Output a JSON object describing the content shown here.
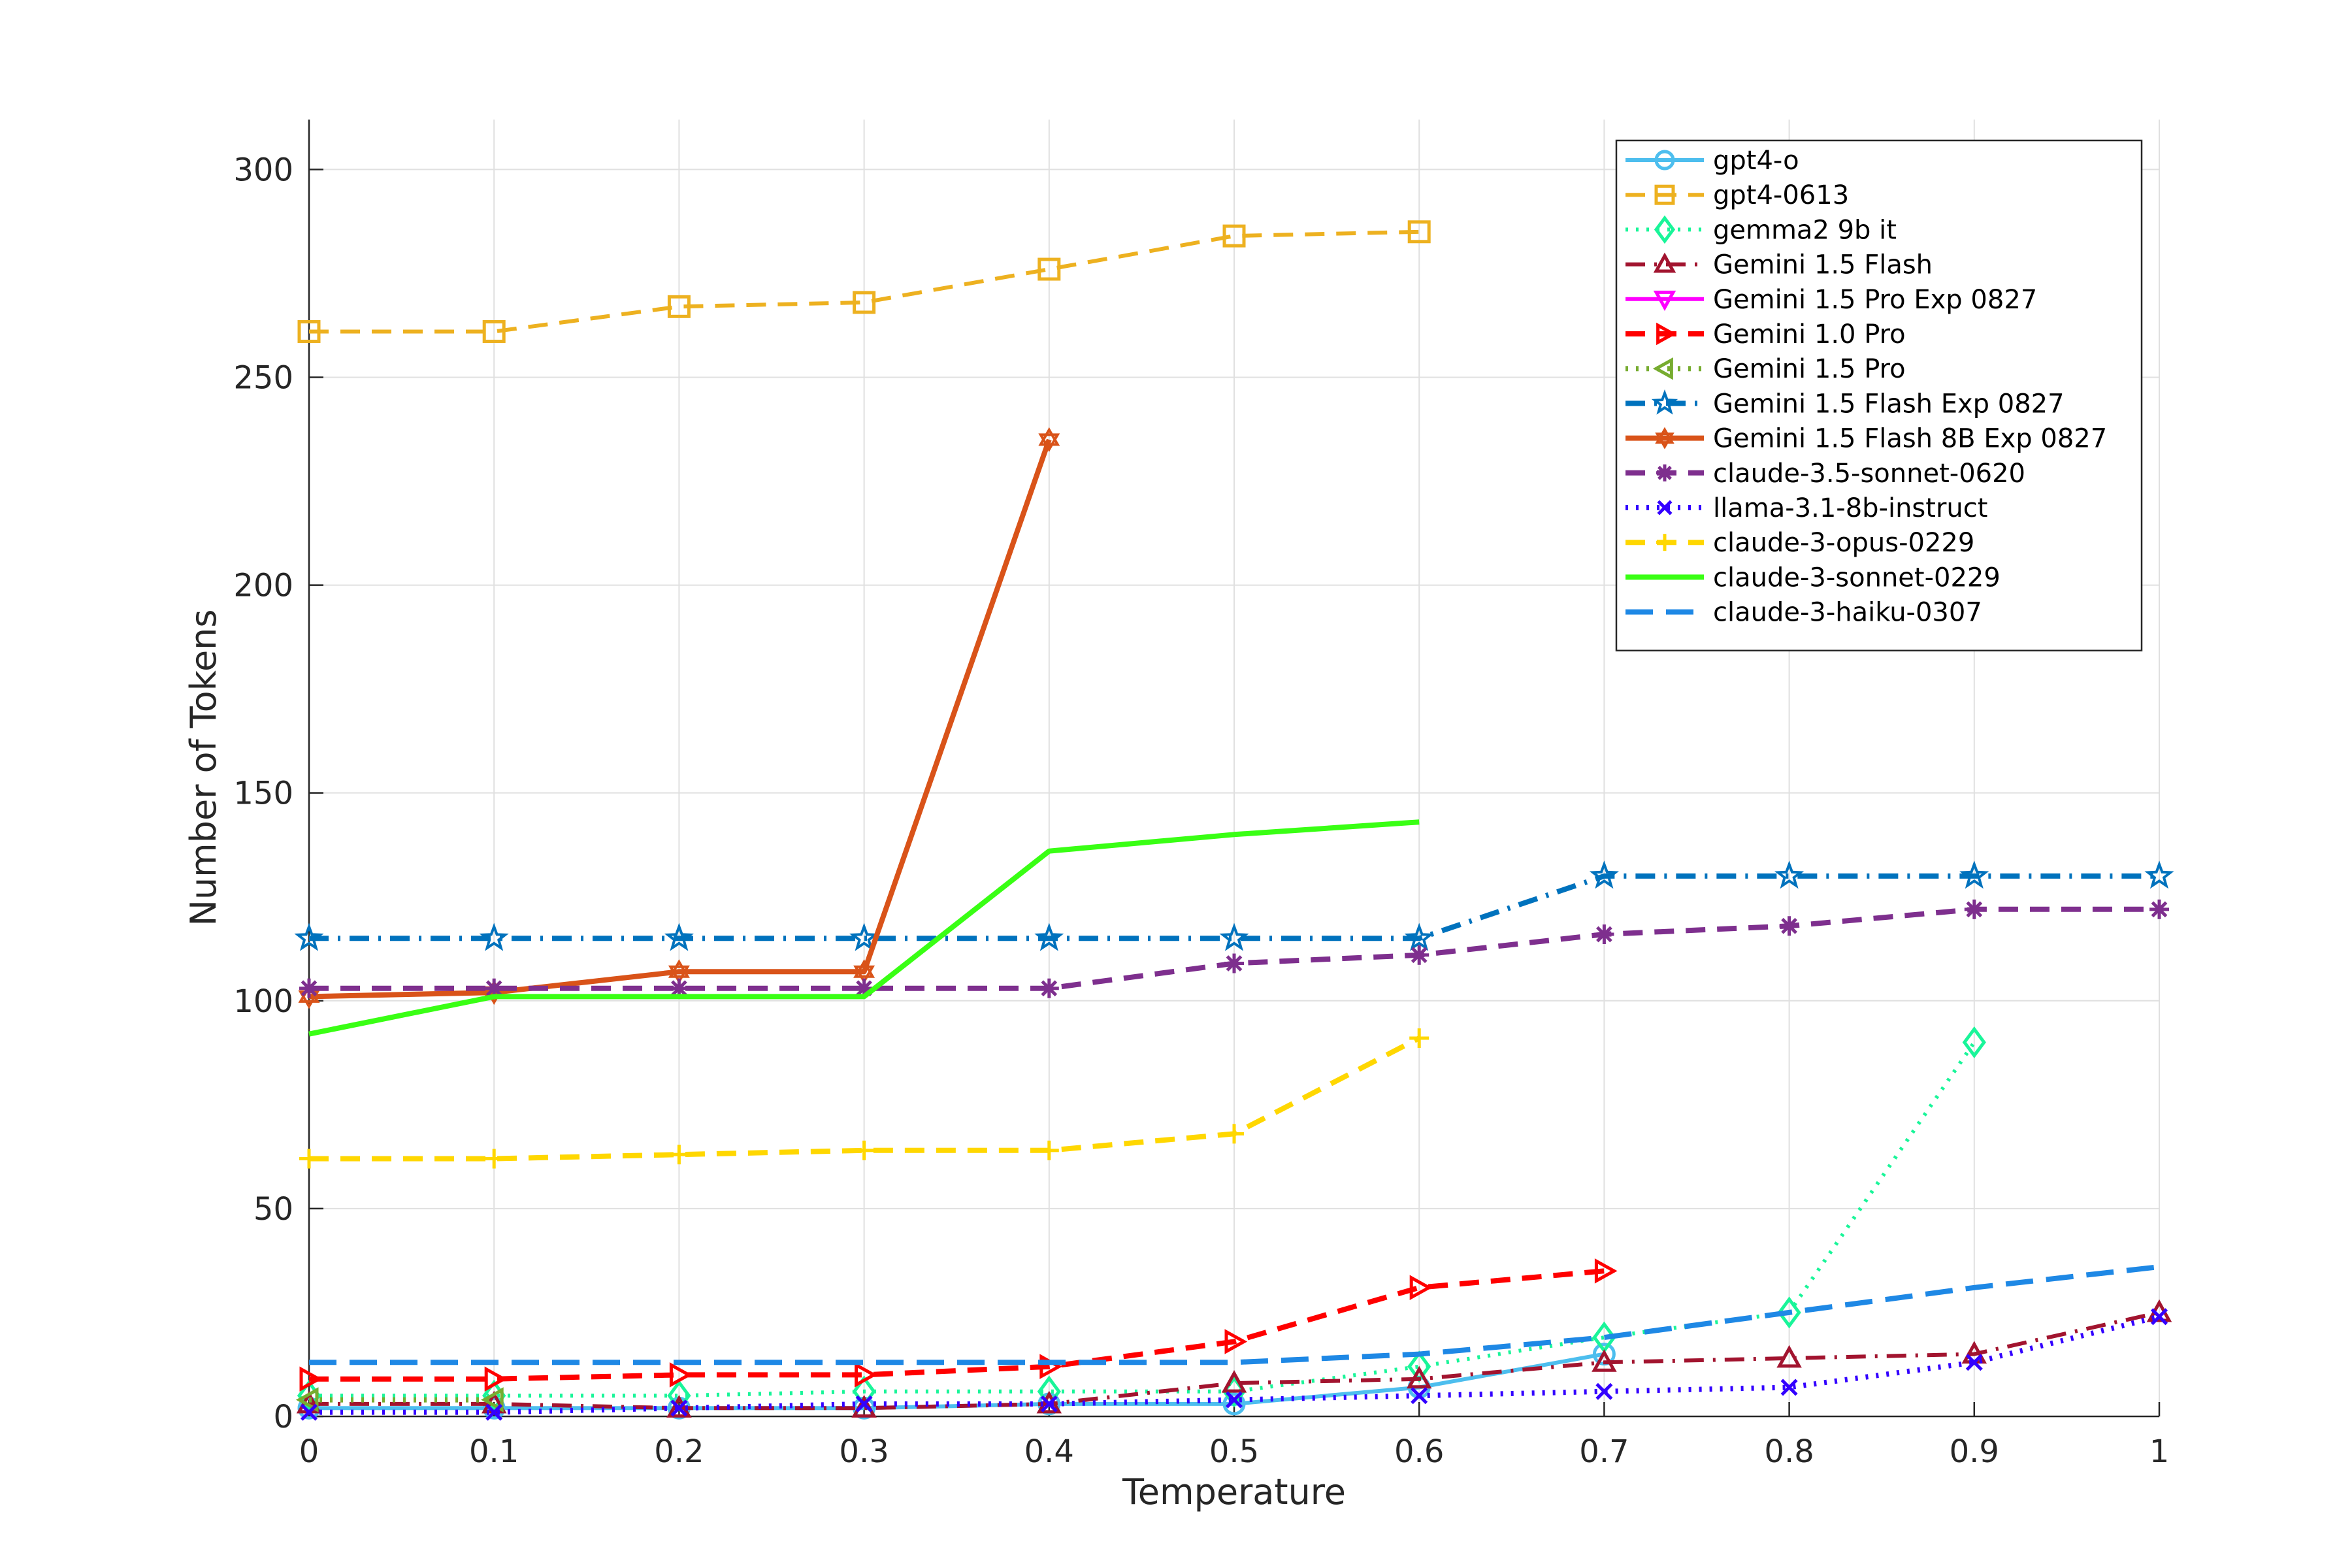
{
  "chart_data": {
    "type": "line",
    "title": "",
    "xlabel": "Temperature",
    "ylabel": "Number of Tokens",
    "xlim": [
      0,
      1
    ],
    "ylim": [
      0,
      300
    ],
    "xticks": [
      0,
      0.1,
      0.2,
      0.3,
      0.4,
      0.5,
      0.6,
      0.7,
      0.8,
      0.9,
      1
    ],
    "xtick_labels": [
      "0",
      "0.1",
      "0.2",
      "0.3",
      "0.4",
      "0.5",
      "0.6",
      "0.7",
      "0.8",
      "0.9",
      "1"
    ],
    "yticks": [
      0,
      50,
      100,
      150,
      200,
      250,
      300
    ],
    "ytick_labels": [
      "0",
      "50",
      "100",
      "150",
      "200",
      "250",
      "300"
    ],
    "grid": true,
    "legend_position": "top-right",
    "series": [
      {
        "name": "gpt4-o",
        "color": "#4DBEEE",
        "dash": "solid",
        "width": 3,
        "marker": "circle",
        "points": [
          [
            0,
            2
          ],
          [
            0.1,
            2
          ],
          [
            0.2,
            2
          ],
          [
            0.3,
            2
          ],
          [
            0.4,
            3
          ],
          [
            0.5,
            3
          ],
          [
            0.6,
            7
          ],
          [
            0.7,
            15
          ]
        ]
      },
      {
        "name": "gpt4-0613",
        "color": "#EDB120",
        "dash": "dashed",
        "width": 3,
        "marker": "square",
        "points": [
          [
            0,
            261
          ],
          [
            0.1,
            261
          ],
          [
            0.2,
            267
          ],
          [
            0.3,
            268
          ],
          [
            0.4,
            276
          ],
          [
            0.5,
            284
          ],
          [
            0.6,
            285
          ]
        ]
      },
      {
        "name": "gemma2 9b it",
        "color": "#19F599",
        "dash": "dotted",
        "width": 3,
        "marker": "diamond",
        "points": [
          [
            0,
            5
          ],
          [
            0.1,
            5
          ],
          [
            0.2,
            5
          ],
          [
            0.3,
            6
          ],
          [
            0.4,
            6
          ],
          [
            0.5,
            6
          ],
          [
            0.6,
            12
          ],
          [
            0.7,
            19
          ],
          [
            0.8,
            25
          ],
          [
            0.9,
            90
          ]
        ]
      },
      {
        "name": "Gemini 1.5 Flash",
        "color": "#A2142F",
        "dash": "dashdot",
        "width": 3,
        "marker": "triangle-up",
        "points": [
          [
            0,
            3
          ],
          [
            0.1,
            3
          ],
          [
            0.2,
            2
          ],
          [
            0.3,
            2
          ],
          [
            0.4,
            3
          ],
          [
            0.5,
            8
          ],
          [
            0.6,
            9
          ],
          [
            0.7,
            13
          ],
          [
            0.8,
            14
          ],
          [
            0.9,
            15
          ],
          [
            1,
            25
          ]
        ]
      },
      {
        "name": "Gemini 1.5 Pro Exp 0827",
        "color": "#FF00FF",
        "dash": "solid",
        "width": 3,
        "marker": "triangle-down",
        "points": []
      },
      {
        "name": "Gemini 1.0 Pro",
        "color": "#FF0000",
        "dash": "dashed",
        "width": 4,
        "marker": "triangle-right",
        "points": [
          [
            0,
            9
          ],
          [
            0.1,
            9
          ],
          [
            0.2,
            10
          ],
          [
            0.3,
            10
          ],
          [
            0.4,
            12
          ],
          [
            0.5,
            18
          ],
          [
            0.6,
            31
          ],
          [
            0.7,
            35
          ]
        ]
      },
      {
        "name": "Gemini 1.5 Pro",
        "color": "#77AC30",
        "dash": "dotted",
        "width": 4,
        "marker": "triangle-left",
        "points": [
          [
            0,
            4
          ],
          [
            0.1,
            4
          ]
        ]
      },
      {
        "name": "Gemini 1.5 Flash Exp 0827",
        "color": "#0072BD",
        "dash": "dashdot",
        "width": 4,
        "marker": "star",
        "points": [
          [
            0,
            115
          ],
          [
            0.1,
            115
          ],
          [
            0.2,
            115
          ],
          [
            0.3,
            115
          ],
          [
            0.4,
            115
          ],
          [
            0.5,
            115
          ],
          [
            0.6,
            115
          ],
          [
            0.7,
            130
          ],
          [
            0.8,
            130
          ],
          [
            0.9,
            130
          ],
          [
            1,
            130
          ]
        ]
      },
      {
        "name": "Gemini 1.5 Flash 8B Exp 0827",
        "color": "#D95319",
        "dash": "solid",
        "width": 4,
        "marker": "hexagram",
        "points": [
          [
            0,
            101
          ],
          [
            0.1,
            102
          ],
          [
            0.2,
            107
          ],
          [
            0.3,
            107
          ],
          [
            0.4,
            235
          ]
        ]
      },
      {
        "name": "claude-3.5-sonnet-0620",
        "color": "#7E2F8E",
        "dash": "dashed",
        "width": 4,
        "marker": "asterisk",
        "points": [
          [
            0,
            103
          ],
          [
            0.1,
            103
          ],
          [
            0.2,
            103
          ],
          [
            0.3,
            103
          ],
          [
            0.4,
            103
          ],
          [
            0.5,
            109
          ],
          [
            0.6,
            111
          ],
          [
            0.7,
            116
          ],
          [
            0.8,
            118
          ],
          [
            0.9,
            122
          ],
          [
            1,
            122
          ]
        ]
      },
      {
        "name": "llama-3.1-8b-instruct",
        "color": "#3300FF",
        "dash": "dotted",
        "width": 4,
        "marker": "x",
        "points": [
          [
            0,
            1
          ],
          [
            0.1,
            1
          ],
          [
            0.2,
            2
          ],
          [
            0.3,
            3
          ],
          [
            0.4,
            3
          ],
          [
            0.5,
            4
          ],
          [
            0.6,
            5
          ],
          [
            0.7,
            6
          ],
          [
            0.8,
            7
          ],
          [
            0.9,
            13
          ],
          [
            1,
            24
          ]
        ]
      },
      {
        "name": "claude-3-opus-0229",
        "color": "#FFD700",
        "dash": "dashed",
        "width": 4,
        "marker": "plus",
        "points": [
          [
            0,
            62
          ],
          [
            0.1,
            62
          ],
          [
            0.2,
            63
          ],
          [
            0.3,
            64
          ],
          [
            0.4,
            64
          ],
          [
            0.5,
            68
          ],
          [
            0.6,
            91
          ]
        ]
      },
      {
        "name": "claude-3-sonnet-0229",
        "color": "#39FF14",
        "dash": "solid",
        "width": 4,
        "marker": "none",
        "points": [
          [
            0,
            92
          ],
          [
            0.1,
            101
          ],
          [
            0.2,
            101
          ],
          [
            0.3,
            101
          ],
          [
            0.4,
            136
          ],
          [
            0.5,
            140
          ],
          [
            0.6,
            143
          ]
        ]
      },
      {
        "name": "claude-3-haiku-0307",
        "color": "#1E88E5",
        "dash": "longdash",
        "width": 4,
        "marker": "none",
        "points": [
          [
            0,
            13
          ],
          [
            0.1,
            13
          ],
          [
            0.2,
            13
          ],
          [
            0.3,
            13
          ],
          [
            0.4,
            13
          ],
          [
            0.5,
            13
          ],
          [
            0.6,
            15
          ],
          [
            0.7,
            19
          ],
          [
            0.8,
            25
          ],
          [
            0.9,
            31
          ],
          [
            1,
            36
          ]
        ]
      }
    ]
  }
}
